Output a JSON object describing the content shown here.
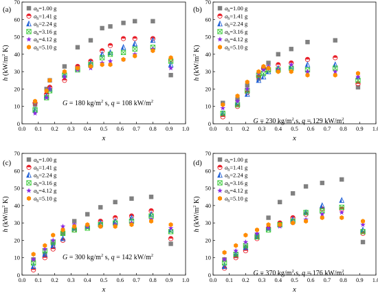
{
  "chart_data": [
    {
      "type": "scatter",
      "panel_label": "(a)",
      "condition": "G = 180 kg/m2 s, q = 108 kW/m2",
      "xlabel": "x",
      "ylabel": "h (kW/m2 K)",
      "xlim": [
        0.0,
        1.0
      ],
      "ylim": [
        0,
        70
      ],
      "x_ticks": [
        "0.0",
        "0.1",
        "0.2",
        "0.3",
        "0.4",
        "0.5",
        "0.6",
        "0.7",
        "0.8",
        "0.9",
        "1.0"
      ],
      "y_ticks": [
        "0",
        "10",
        "20",
        "30",
        "40",
        "50",
        "60",
        "70"
      ],
      "grid": false,
      "legend_position": "top-left",
      "series": [
        {
          "name": "a_h=1.00 g",
          "x": [
            0.08,
            0.15,
            0.17,
            0.26,
            0.34,
            0.42,
            0.49,
            0.54,
            0.62,
            0.69,
            0.8,
            0.91
          ],
          "y": [
            11,
            20,
            25,
            33,
            44,
            48,
            55,
            56,
            58,
            59,
            59,
            28
          ]
        },
        {
          "name": "a_h=1.41 g",
          "x": [
            0.08,
            0.15,
            0.17,
            0.26,
            0.34,
            0.42,
            0.49,
            0.54,
            0.62,
            0.69,
            0.8,
            0.91
          ],
          "y": [
            12,
            17,
            21,
            25,
            33,
            36,
            42,
            45,
            49,
            49,
            49,
            37
          ]
        },
        {
          "name": "a_h=2.24 g",
          "x": [
            0.08,
            0.15,
            0.17,
            0.26,
            0.34,
            0.42,
            0.49,
            0.54,
            0.62,
            0.69,
            0.8,
            0.91
          ],
          "y": [
            8,
            16,
            20,
            28,
            32,
            35,
            40,
            41,
            44,
            46,
            48,
            34
          ]
        },
        {
          "name": "a_h=3.16 g",
          "x": [
            0.08,
            0.15,
            0.17,
            0.26,
            0.34,
            0.42,
            0.49,
            0.54,
            0.62,
            0.69,
            0.8,
            0.91
          ],
          "y": [
            8,
            15,
            19,
            28,
            31,
            34,
            38,
            40,
            41,
            43,
            44,
            36
          ]
        },
        {
          "name": "a_h=4.12 g",
          "x": [
            0.08,
            0.15,
            0.17,
            0.26,
            0.34,
            0.42,
            0.49,
            0.54,
            0.62,
            0.69,
            0.8,
            0.91
          ],
          "y": [
            6,
            15,
            20,
            27,
            31,
            32,
            35,
            36,
            37,
            40,
            43,
            32
          ]
        },
        {
          "name": "a_h=5.10 g",
          "x": [
            0.08,
            0.15,
            0.17,
            0.26,
            0.34,
            0.42,
            0.49,
            0.54,
            0.62,
            0.69,
            0.8,
            0.91
          ],
          "y": [
            13,
            19,
            25,
            30,
            32,
            33,
            34,
            34,
            37,
            39,
            42,
            38
          ]
        }
      ]
    },
    {
      "type": "scatter",
      "panel_label": "(b)",
      "condition": "G = 230 kg/m2 s, q = 129 kW/m2",
      "xlabel": "x",
      "ylabel": "h (kW/m2 K)",
      "xlim": [
        0.0,
        1.0
      ],
      "ylim": [
        0,
        70
      ],
      "x_ticks": [
        "0.0",
        "0.1",
        "0.2",
        "0.3",
        "0.4",
        "0.5",
        "0.6",
        "0.7",
        "0.8",
        "0.9",
        "1.0"
      ],
      "y_ticks": [
        "0",
        "10",
        "20",
        "30",
        "40",
        "50",
        "60",
        "70"
      ],
      "grid": false,
      "legend_position": "top-left",
      "series": [
        {
          "name": "a_h=1.00 g",
          "x": [
            0.06,
            0.15,
            0.21,
            0.28,
            0.31,
            0.34,
            0.4,
            0.48,
            0.58,
            0.75,
            0.89
          ],
          "y": [
            12,
            14,
            22,
            26,
            32,
            35,
            40,
            43,
            47,
            48,
            21
          ]
        },
        {
          "name": "a_h=1.41 g",
          "x": [
            0.06,
            0.15,
            0.21,
            0.28,
            0.31,
            0.34,
            0.4,
            0.48,
            0.58,
            0.75,
            0.89
          ],
          "y": [
            4,
            10,
            18,
            27,
            32,
            31,
            34,
            35,
            37,
            38,
            23
          ]
        },
        {
          "name": "a_h=2.24 g",
          "x": [
            0.06,
            0.15,
            0.21,
            0.28,
            0.31,
            0.34,
            0.4,
            0.48,
            0.58,
            0.75,
            0.89
          ],
          "y": [
            6,
            12,
            17,
            25,
            27,
            30,
            32,
            33,
            34,
            34,
            27
          ]
        },
        {
          "name": "a_h=3.16 g",
          "x": [
            0.06,
            0.15,
            0.21,
            0.28,
            0.31,
            0.34,
            0.4,
            0.48,
            0.58,
            0.75,
            0.89
          ],
          "y": [
            6,
            11,
            19,
            28,
            29,
            31,
            31,
            32,
            31,
            32,
            25
          ]
        },
        {
          "name": "a_h=4.12 g",
          "x": [
            0.06,
            0.15,
            0.21,
            0.28,
            0.31,
            0.34,
            0.4,
            0.48,
            0.58,
            0.75,
            0.89
          ],
          "y": [
            9,
            13,
            20,
            29,
            31,
            33,
            31,
            34,
            30,
            30,
            27
          ]
        },
        {
          "name": "a_h=5.10 g",
          "x": [
            0.06,
            0.15,
            0.21,
            0.28,
            0.31,
            0.34,
            0.4,
            0.48,
            0.58,
            0.75,
            0.89
          ],
          "y": [
            11,
            16,
            24,
            30,
            33,
            32,
            30,
            30,
            28,
            28,
            29
          ]
        }
      ]
    },
    {
      "type": "scatter",
      "panel_label": "(c)",
      "condition": "G = 300 kg/m2 s, q = 142 kW/m2",
      "xlabel": "x",
      "ylabel": "h (kW/m2 K)",
      "xlim": [
        0.0,
        1.0
      ],
      "ylim": [
        0,
        70
      ],
      "x_ticks": [
        "0.0",
        "0.1",
        "0.2",
        "0.3",
        "0.4",
        "0.5",
        "0.6",
        "0.7",
        "0.8",
        "0.9",
        "1.0"
      ],
      "y_ticks": [
        "0",
        "10",
        "20",
        "30",
        "40",
        "50",
        "60",
        "70"
      ],
      "grid": false,
      "legend_position": "top-left",
      "series": [
        {
          "name": "a_h=1.00 g",
          "x": [
            0.07,
            0.14,
            0.19,
            0.25,
            0.32,
            0.4,
            0.48,
            0.57,
            0.67,
            0.79,
            0.91
          ],
          "y": [
            9,
            12,
            18,
            24,
            31,
            35,
            39,
            42,
            44,
            45,
            18
          ]
        },
        {
          "name": "a_h=1.41 g",
          "x": [
            0.07,
            0.14,
            0.19,
            0.25,
            0.32,
            0.4,
            0.48,
            0.57,
            0.67,
            0.79,
            0.91
          ],
          "y": [
            3,
            10,
            15,
            20,
            26,
            28,
            31,
            33,
            34,
            37,
            21
          ]
        },
        {
          "name": "a_h=2.24 g",
          "x": [
            0.07,
            0.14,
            0.19,
            0.25,
            0.32,
            0.4,
            0.48,
            0.57,
            0.67,
            0.79,
            0.91
          ],
          "y": [
            5,
            12,
            17,
            21,
            27,
            28,
            30,
            31,
            33,
            35,
            26
          ]
        },
        {
          "name": "a_h=3.16 g",
          "x": [
            0.07,
            0.14,
            0.19,
            0.25,
            0.32,
            0.4,
            0.48,
            0.57,
            0.67,
            0.79,
            0.91
          ],
          "y": [
            7,
            14,
            19,
            24,
            26,
            27,
            29,
            30,
            31,
            34,
            25
          ]
        },
        {
          "name": "a_h=4.12 g",
          "x": [
            0.07,
            0.14,
            0.19,
            0.25,
            0.32,
            0.4,
            0.48,
            0.57,
            0.67,
            0.79,
            0.91
          ],
          "y": [
            9,
            15,
            20,
            28,
            29,
            28,
            28,
            29,
            30,
            32,
            27
          ]
        },
        {
          "name": "a_h=5.10 g",
          "x": [
            0.07,
            0.14,
            0.19,
            0.25,
            0.32,
            0.4,
            0.48,
            0.57,
            0.67,
            0.79,
            0.91
          ],
          "y": [
            12,
            17,
            23,
            26,
            28,
            29,
            28,
            28,
            29,
            31,
            29
          ]
        }
      ]
    },
    {
      "type": "scatter",
      "panel_label": "(d)",
      "condition": "G = 370 kg/m2 s, q = 176 kW/m2",
      "xlabel": "x",
      "ylabel": "h (kW/m2 K)",
      "xlim": [
        0.0,
        1.0
      ],
      "ylim": [
        0,
        70
      ],
      "x_ticks": [
        "0.0",
        "0.1",
        "0.2",
        "0.3",
        "0.4",
        "0.5",
        "0.6",
        "0.7",
        "0.8",
        "0.9",
        "1.0"
      ],
      "y_ticks": [
        "0",
        "10",
        "20",
        "30",
        "40",
        "50",
        "60",
        "70"
      ],
      "grid": false,
      "legend_position": "top-left",
      "series": [
        {
          "name": "a_h=1.00 g",
          "x": [
            0.07,
            0.14,
            0.2,
            0.27,
            0.34,
            0.41,
            0.49,
            0.57,
            0.67,
            0.79,
            0.92
          ],
          "y": [
            9,
            11,
            16,
            23,
            33,
            42,
            47,
            51,
            53,
            55,
            19
          ]
        },
        {
          "name": "a_h=1.41 g",
          "x": [
            0.07,
            0.14,
            0.2,
            0.27,
            0.34,
            0.41,
            0.49,
            0.57,
            0.67,
            0.79,
            0.92
          ],
          "y": [
            4,
            10,
            14,
            21,
            27,
            30,
            33,
            35,
            38,
            38,
            24
          ]
        },
        {
          "name": "a_h=2.24 g",
          "x": [
            0.07,
            0.14,
            0.2,
            0.27,
            0.34,
            0.41,
            0.49,
            0.57,
            0.67,
            0.79,
            0.92
          ],
          "y": [
            5,
            12,
            16,
            22,
            27,
            29,
            32,
            36,
            40,
            43,
            26
          ]
        },
        {
          "name": "a_h=3.16 g",
          "x": [
            0.07,
            0.14,
            0.2,
            0.27,
            0.34,
            0.41,
            0.49,
            0.57,
            0.67,
            0.79,
            0.92
          ],
          "y": [
            7,
            12,
            17,
            22,
            26,
            29,
            31,
            36,
            37,
            39,
            25
          ]
        },
        {
          "name": "a_h=4.12 g",
          "x": [
            0.07,
            0.14,
            0.2,
            0.27,
            0.34,
            0.41,
            0.49,
            0.57,
            0.67,
            0.79,
            0.92
          ],
          "y": [
            9,
            14,
            19,
            24,
            27,
            28,
            30,
            32,
            35,
            36,
            29
          ]
        },
        {
          "name": "a_h=5.10 g",
          "x": [
            0.07,
            0.14,
            0.2,
            0.27,
            0.34,
            0.41,
            0.49,
            0.57,
            0.67,
            0.79,
            0.92
          ],
          "y": [
            13,
            17,
            23,
            26,
            29,
            29,
            30,
            31,
            33,
            33,
            31
          ]
        }
      ]
    }
  ],
  "legend": {
    "symbol": "a",
    "subscript": "h",
    "entries": [
      "=1.00 g",
      "=1.41 g",
      "=2.24 g",
      "=3.16 g",
      "=4.12 g",
      "=5.10 g"
    ]
  },
  "axis_text": {
    "x_label": "x",
    "y_label_var": "h",
    "y_label_unit_pre": " (kW/m",
    "y_label_unit_sup": "2",
    "y_label_unit_post": " K)"
  },
  "annotations": [
    {
      "g_var": "G",
      "g_value": " = 180 kg/m",
      "sup1": "2",
      "mid": " s, ",
      "q_var": "q",
      "q_value": " = 108 kW/m",
      "sup2": "2"
    },
    {
      "g_var": "G",
      "g_value": " = 230 kg/m",
      "sup1": "2",
      "mid": " s, ",
      "q_var": "q",
      "q_value": " = 129 kW/m",
      "sup2": "2"
    },
    {
      "g_var": "G",
      "g_value": " = 300 kg/m",
      "sup1": "2",
      "mid": " s, ",
      "q_var": "q",
      "q_value": " = 142 kW/m",
      "sup2": "2"
    },
    {
      "g_var": "G",
      "g_value": " = 370 kg/m",
      "sup1": "2",
      "mid": " s, ",
      "q_var": "q",
      "q_value": " = 176 kW/m",
      "sup2": "2"
    }
  ],
  "series_styles": [
    {
      "marker": "square",
      "color": "#808080"
    },
    {
      "marker": "half-circle",
      "color": "#e8202a"
    },
    {
      "marker": "half-triangle",
      "color": "#1f5fd6"
    },
    {
      "marker": "crossed-square",
      "color": "#36c936"
    },
    {
      "marker": "star",
      "color": "#8a2be2"
    },
    {
      "marker": "half-hexagon",
      "color": "#ff8c00"
    }
  ]
}
